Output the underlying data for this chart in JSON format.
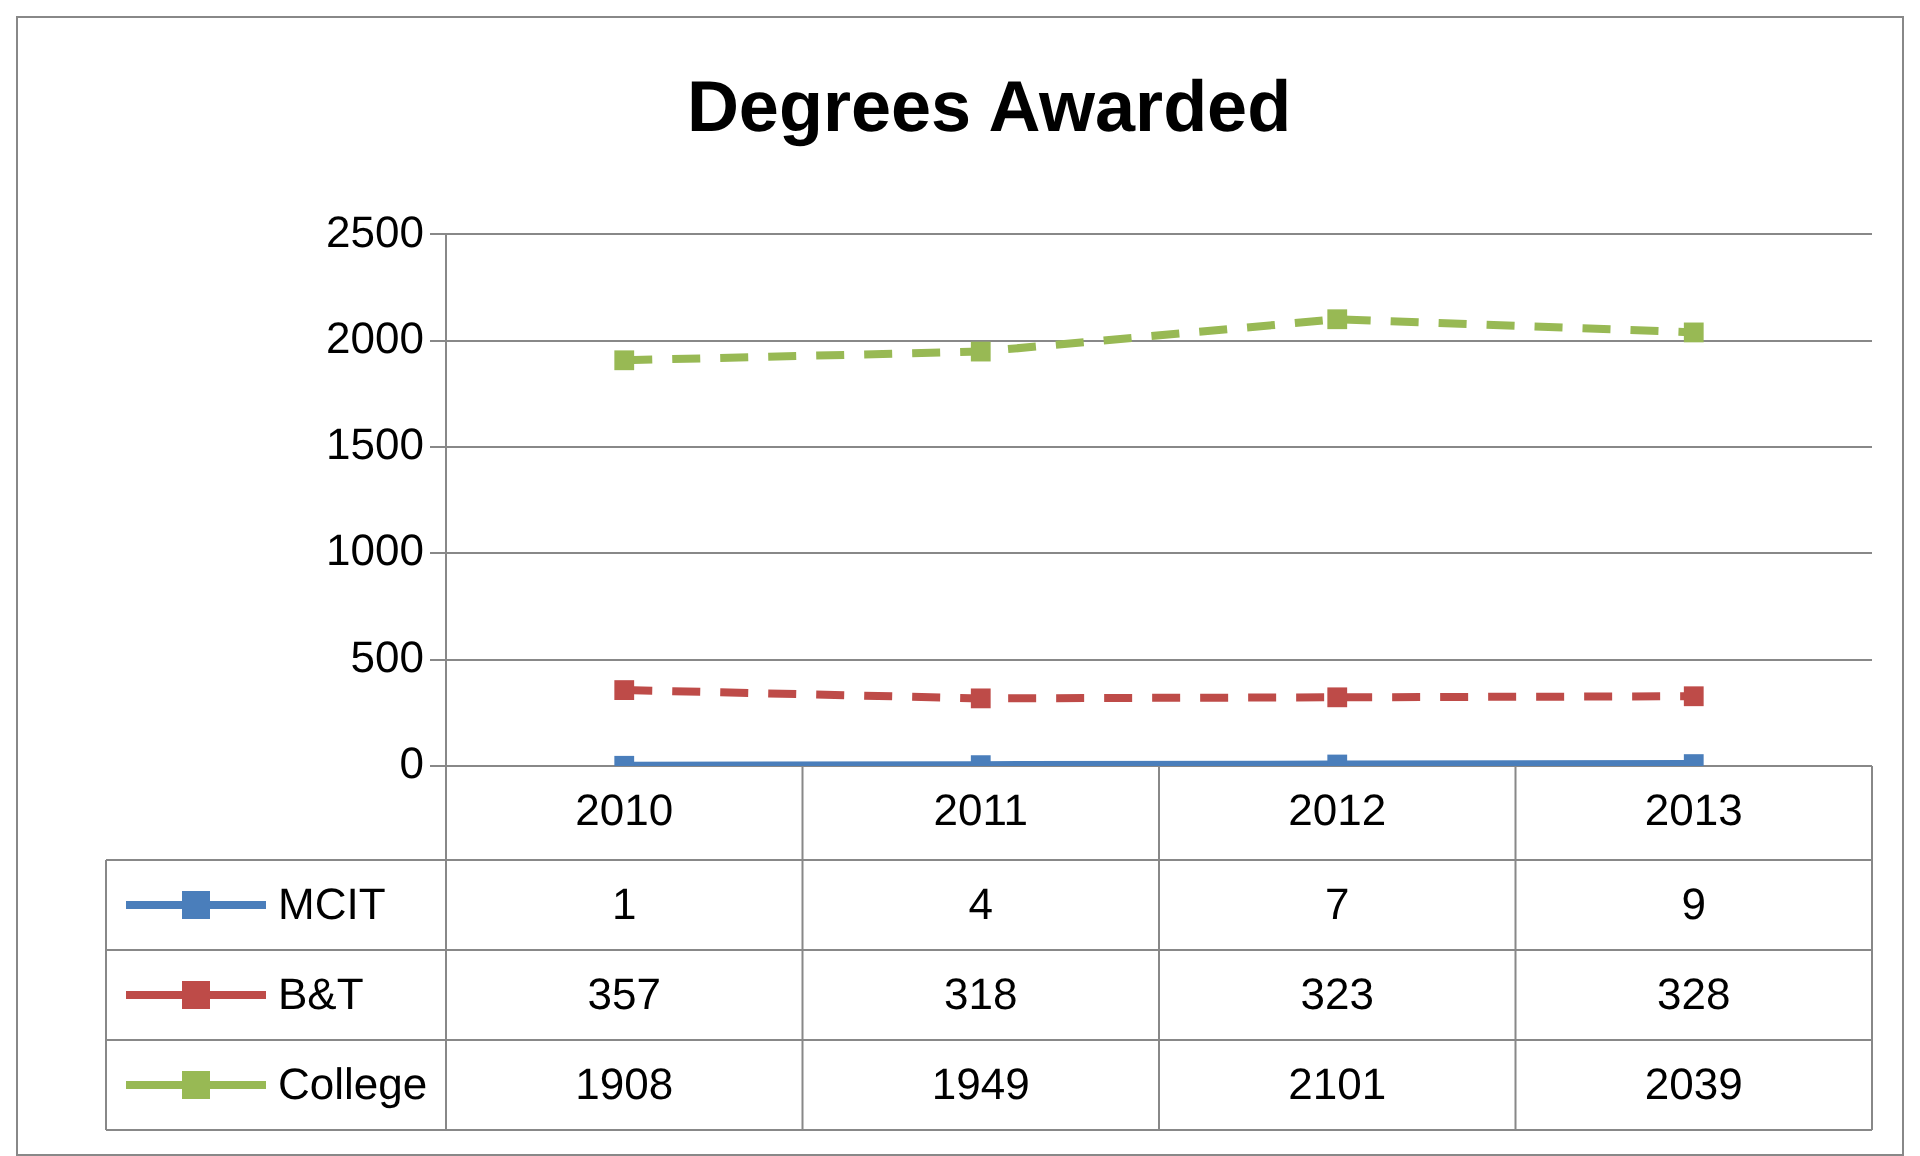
{
  "chart_data": {
    "type": "line",
    "title": "Degrees Awarded",
    "categories": [
      "2010",
      "2011",
      "2012",
      "2013"
    ],
    "series": [
      {
        "name": "MCIT",
        "color": "#4a7ebb",
        "line_style": "solid",
        "values": [
          1,
          4,
          7,
          9
        ]
      },
      {
        "name": "B&T",
        "color": "#be4b48",
        "line_style": "dashed",
        "values": [
          357,
          318,
          323,
          328
        ]
      },
      {
        "name": "College",
        "color": "#98b954",
        "line_style": "dashed",
        "values": [
          1908,
          1949,
          2101,
          2039
        ]
      }
    ],
    "ylim": [
      0,
      2500
    ],
    "yticks": [
      0,
      500,
      1000,
      1500,
      2000,
      2500
    ],
    "grid": "y",
    "marker": "square",
    "legend": "bottom",
    "data_labels": true
  }
}
